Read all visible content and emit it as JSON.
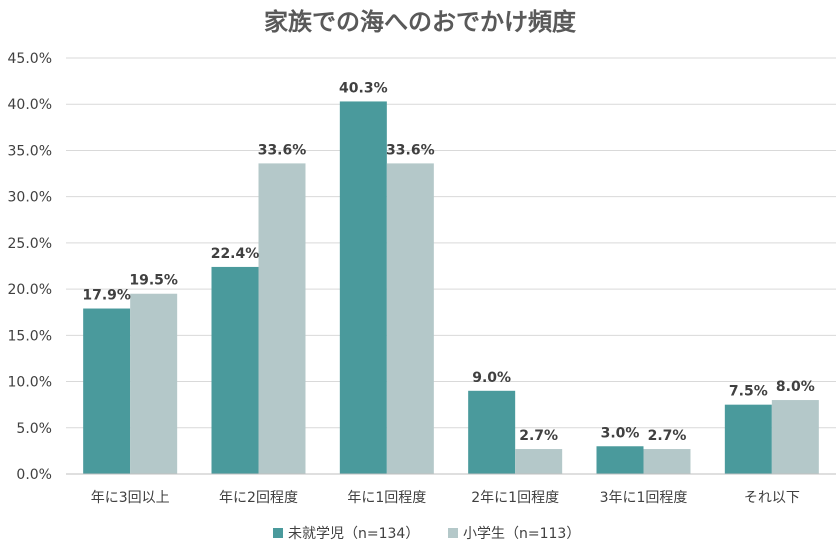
{
  "chart_data": {
    "type": "bar",
    "title": "家族での海へのおでかけ頻度",
    "categories": [
      "年に3回以上",
      "年に2回程度",
      "年に1回程度",
      "2年に1回程度",
      "3年に1回程度",
      "それ以下"
    ],
    "series": [
      {
        "name": "未就学児（n=134）",
        "color": "#4a9a9c",
        "values": [
          17.9,
          22.4,
          40.3,
          9.0,
          3.0,
          7.5
        ],
        "labels": [
          "17.9%",
          "22.4%",
          "40.3%",
          "9.0%",
          "3.0%",
          "7.5%"
        ]
      },
      {
        "name": "小学生（n=113）",
        "color": "#b4c8c9",
        "values": [
          19.5,
          33.6,
          33.6,
          2.7,
          2.7,
          8.0
        ],
        "labels": [
          "19.5%",
          "33.6%",
          "33.6%",
          "2.7%",
          "2.7%",
          "8.0%"
        ]
      }
    ],
    "ylim": [
      0,
      45
    ],
    "yticks": [
      "0.0%",
      "5.0%",
      "10.0%",
      "15.0%",
      "20.0%",
      "25.0%",
      "30.0%",
      "35.0%",
      "40.0%",
      "45.0%"
    ],
    "grid": true,
    "legend": "bottom"
  }
}
